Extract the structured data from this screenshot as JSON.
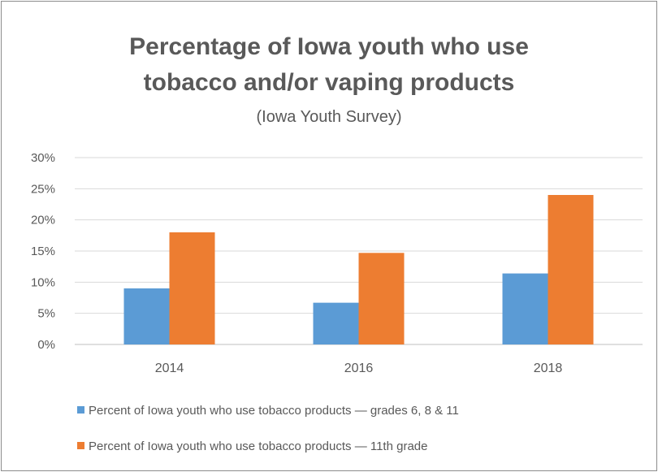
{
  "chart_data": {
    "type": "bar",
    "title_line1": "Percentage of Iowa youth who use",
    "title_line2": "tobacco and/or vaping products",
    "subtitle": "(Iowa Youth Survey)",
    "categories": [
      "2014",
      "2016",
      "2018"
    ],
    "series": [
      {
        "name": "Percent of Iowa youth who use tobacco products — grades 6, 8 & 11",
        "values": [
          9,
          6.7,
          11.4
        ],
        "color": "#5b9bd5"
      },
      {
        "name": "Percent of Iowa youth who use tobacco products — 11th grade",
        "values": [
          18,
          14.7,
          24
        ],
        "color": "#ed7d31"
      }
    ],
    "ylim": [
      0,
      30
    ],
    "yticks": [
      0,
      5,
      10,
      15,
      20,
      25,
      30
    ],
    "ytick_labels": [
      "0%",
      "5%",
      "10%",
      "15%",
      "20%",
      "25%",
      "30%"
    ],
    "grid": true,
    "legend_position": "bottom"
  }
}
